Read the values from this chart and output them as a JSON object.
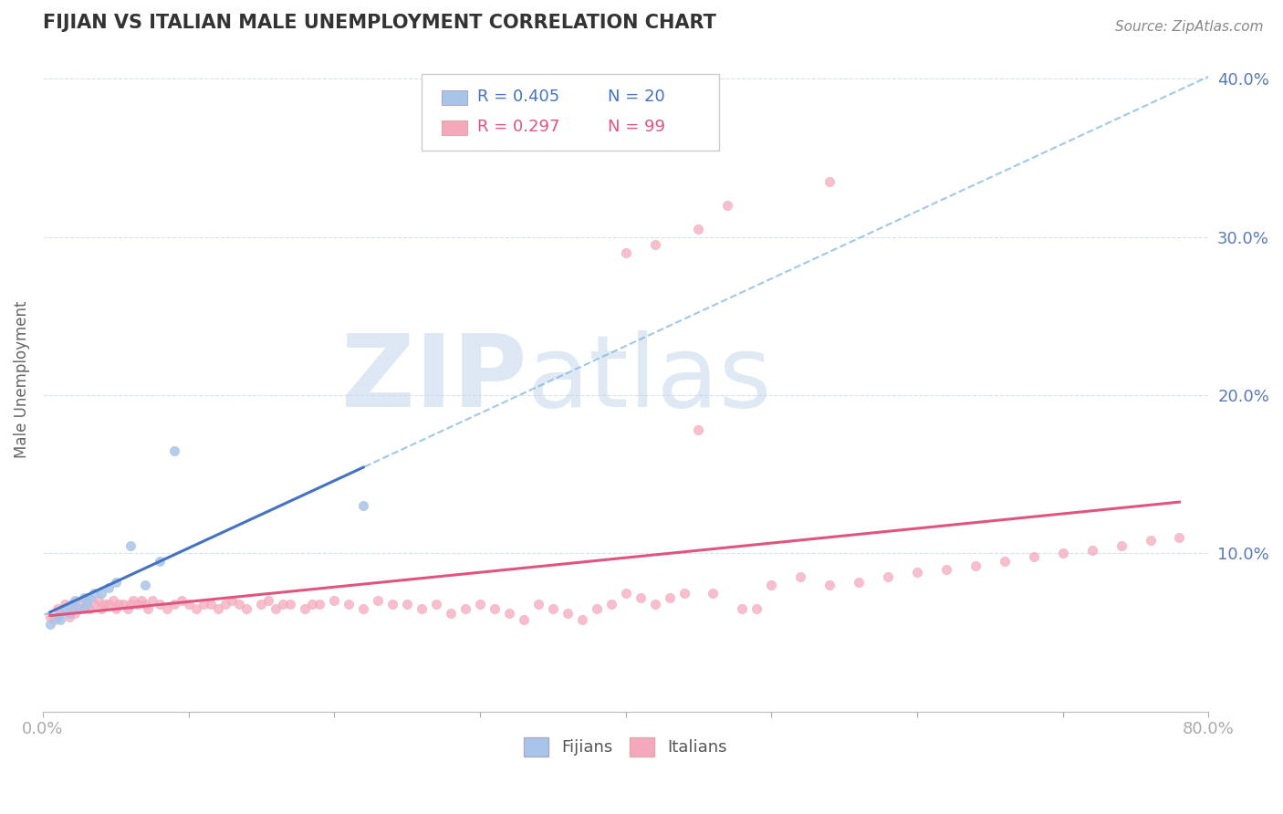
{
  "title": "FIJIAN VS ITALIAN MALE UNEMPLOYMENT CORRELATION CHART",
  "source": "Source: ZipAtlas.com",
  "ylabel": "Male Unemployment",
  "xlim": [
    0.0,
    0.8
  ],
  "ylim": [
    0.0,
    0.42
  ],
  "yticks": [
    0.1,
    0.2,
    0.3,
    0.4
  ],
  "ytick_labels": [
    "10.0%",
    "20.0%",
    "30.0%",
    "40.0%"
  ],
  "fijian_color": "#a8c4e8",
  "italian_color": "#f5a8bc",
  "fijian_line_color": "#4472c4",
  "italian_line_color": "#e05580",
  "fijian_dash_color": "#7ab0e0",
  "legend_r_fijian": "R = 0.405",
  "legend_n_fijian": "N = 20",
  "legend_r_italian": "R = 0.297",
  "legend_n_italian": "N = 99",
  "background_color": "#ffffff",
  "grid_color": "#d8e0ec",
  "fijian_x": [
    0.005,
    0.01,
    0.012,
    0.015,
    0.018,
    0.02,
    0.022,
    0.025,
    0.028,
    0.03,
    0.032,
    0.035,
    0.04,
    0.045,
    0.05,
    0.06,
    0.07,
    0.08,
    0.09,
    0.22
  ],
  "fijian_y": [
    0.055,
    0.06,
    0.058,
    0.065,
    0.062,
    0.068,
    0.07,
    0.065,
    0.072,
    0.068,
    0.072,
    0.075,
    0.075,
    0.078,
    0.082,
    0.105,
    0.08,
    0.095,
    0.165,
    0.13
  ],
  "italian_x": [
    0.005,
    0.008,
    0.01,
    0.012,
    0.015,
    0.018,
    0.02,
    0.022,
    0.025,
    0.028,
    0.03,
    0.032,
    0.035,
    0.038,
    0.04,
    0.042,
    0.045,
    0.048,
    0.05,
    0.052,
    0.055,
    0.058,
    0.06,
    0.062,
    0.065,
    0.068,
    0.07,
    0.072,
    0.075,
    0.08,
    0.085,
    0.09,
    0.095,
    0.1,
    0.105,
    0.11,
    0.115,
    0.12,
    0.125,
    0.13,
    0.135,
    0.14,
    0.15,
    0.155,
    0.16,
    0.165,
    0.17,
    0.18,
    0.185,
    0.19,
    0.2,
    0.21,
    0.22,
    0.23,
    0.24,
    0.25,
    0.26,
    0.27,
    0.28,
    0.29,
    0.3,
    0.31,
    0.32,
    0.33,
    0.34,
    0.35,
    0.36,
    0.37,
    0.38,
    0.39,
    0.4,
    0.41,
    0.42,
    0.43,
    0.44,
    0.45,
    0.46,
    0.48,
    0.49,
    0.5,
    0.52,
    0.54,
    0.56,
    0.58,
    0.6,
    0.62,
    0.64,
    0.66,
    0.68,
    0.7,
    0.72,
    0.74,
    0.76,
    0.78,
    0.45,
    0.47,
    0.54,
    0.42,
    0.4
  ],
  "italian_y": [
    0.06,
    0.058,
    0.065,
    0.062,
    0.068,
    0.06,
    0.065,
    0.062,
    0.068,
    0.065,
    0.07,
    0.065,
    0.068,
    0.07,
    0.065,
    0.068,
    0.068,
    0.07,
    0.065,
    0.068,
    0.068,
    0.065,
    0.068,
    0.07,
    0.068,
    0.07,
    0.068,
    0.065,
    0.07,
    0.068,
    0.065,
    0.068,
    0.07,
    0.068,
    0.065,
    0.068,
    0.068,
    0.065,
    0.068,
    0.07,
    0.068,
    0.065,
    0.068,
    0.07,
    0.065,
    0.068,
    0.068,
    0.065,
    0.068,
    0.068,
    0.07,
    0.068,
    0.065,
    0.07,
    0.068,
    0.068,
    0.065,
    0.068,
    0.062,
    0.065,
    0.068,
    0.065,
    0.062,
    0.058,
    0.068,
    0.065,
    0.062,
    0.058,
    0.065,
    0.068,
    0.075,
    0.072,
    0.068,
    0.072,
    0.075,
    0.178,
    0.075,
    0.065,
    0.065,
    0.08,
    0.085,
    0.08,
    0.082,
    0.085,
    0.088,
    0.09,
    0.092,
    0.095,
    0.098,
    0.1,
    0.102,
    0.105,
    0.108,
    0.11,
    0.305,
    0.32,
    0.335,
    0.295,
    0.29
  ]
}
